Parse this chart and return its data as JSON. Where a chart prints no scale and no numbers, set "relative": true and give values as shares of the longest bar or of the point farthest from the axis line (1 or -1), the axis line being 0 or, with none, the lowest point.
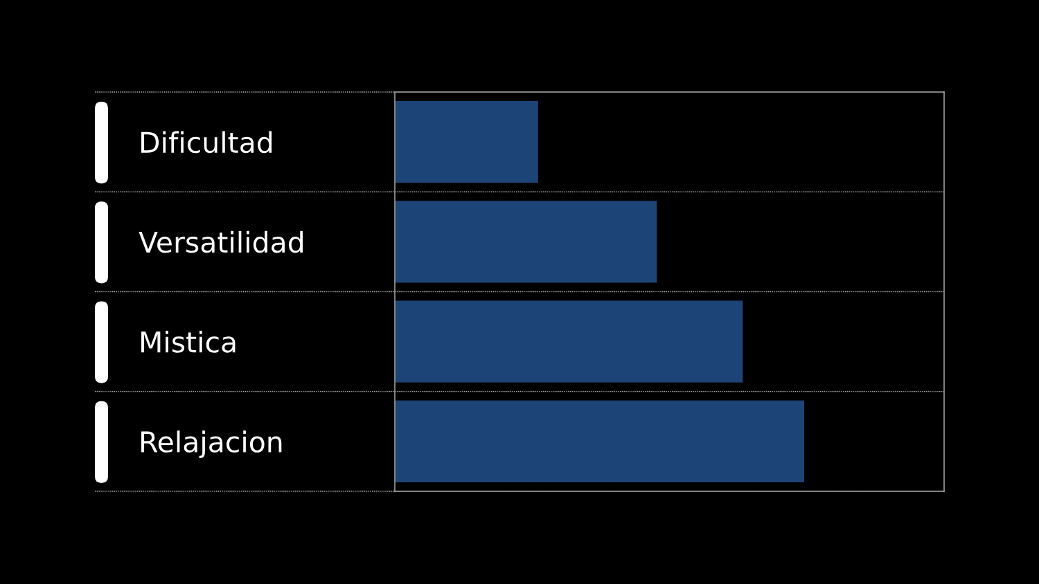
{
  "chart_data": {
    "type": "bar",
    "orientation": "horizontal",
    "relative": true,
    "categories": [
      "Dificultad",
      "Versatilidad",
      "Mistica",
      "Relajacion"
    ],
    "values": [
      0.35,
      0.64,
      0.85,
      1.0
    ],
    "color": "#1d4477",
    "grid": "y"
  }
}
